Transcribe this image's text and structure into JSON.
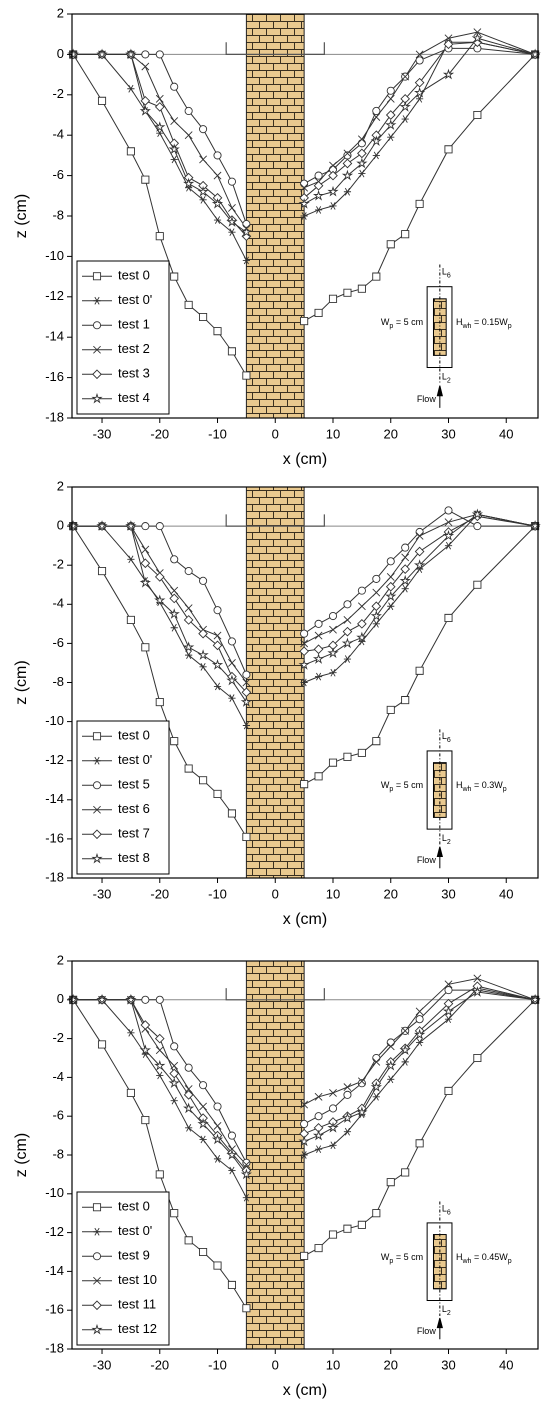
{
  "chart_data": [
    {
      "type": "line",
      "xlabel": "x (cm)",
      "ylabel": "z (cm)",
      "xlim": [
        -35.2,
        45.5
      ],
      "ylim": [
        -18,
        2
      ],
      "xticks": [
        -30,
        -20,
        -10,
        0,
        10,
        20,
        30,
        40
      ],
      "yticks": [
        2,
        0,
        -2,
        -4,
        -6,
        -8,
        -10,
        -12,
        -14,
        -16,
        -18
      ],
      "legend": "lower left",
      "series": [
        {
          "name": "test 0",
          "color": "#333333",
          "marker": "square",
          "x": [
            -35,
            -30,
            -25,
            -22.5,
            -20,
            -17.5,
            -15,
            -12.5,
            -10,
            -7.5,
            -5,
            5,
            7.5,
            10,
            12.5,
            15,
            17.5,
            20,
            22.5,
            25,
            30,
            35,
            45
          ],
          "values": [
            0,
            -2.3,
            -4.8,
            -6.2,
            -9,
            -11,
            -12.4,
            -13,
            -13.7,
            -14.7,
            -15.9,
            -13.2,
            -12.8,
            -12.1,
            -11.8,
            -11.6,
            -11,
            -9.4,
            -8.9,
            -7.4,
            -4.7,
            -3,
            0
          ]
        },
        {
          "name": "test 0'",
          "color": "#333333",
          "marker": "asterisk",
          "x": [
            -35,
            -30,
            -25,
            -22.5,
            -20,
            -17.5,
            -15,
            -12.5,
            -10,
            -7.5,
            -5,
            5,
            7.5,
            10,
            12.5,
            15,
            17.5,
            20,
            22.5,
            25,
            30,
            35,
            45
          ],
          "values": [
            0,
            0,
            -1.7,
            -2.8,
            -3.9,
            -5.2,
            -6.6,
            -7.2,
            -8.2,
            -8.8,
            -10.2,
            -8,
            -7.7,
            -7.5,
            -6.8,
            -5.9,
            -5,
            -4.1,
            -3.2,
            -2.2,
            0.6,
            0.6,
            0
          ]
        },
        {
          "name": "test 1",
          "color": "#333333",
          "marker": "circle",
          "x": [
            -35,
            -30,
            -25,
            -22.5,
            -20,
            -17.5,
            -15,
            -12.5,
            -10,
            -7.5,
            -5,
            5,
            7.5,
            10,
            12.5,
            15,
            17.5,
            20,
            22.5,
            25,
            30,
            35,
            45
          ],
          "values": [
            0,
            0,
            0,
            0,
            0,
            -1.6,
            -2.8,
            -3.7,
            -5,
            -6.3,
            -8.4,
            -6.4,
            -6,
            -5.7,
            -5,
            -4.4,
            -2.8,
            -1.8,
            -1.1,
            -0.3,
            0.3,
            0.3,
            0
          ]
        },
        {
          "name": "test 2",
          "color": "#333333",
          "marker": "x",
          "x": [
            -35,
            -30,
            -25,
            -22.5,
            -20,
            -17.5,
            -15,
            -12.5,
            -10,
            -7.5,
            -5,
            5,
            7.5,
            10,
            12.5,
            15,
            17.5,
            20,
            22.5,
            25,
            30,
            35,
            45
          ],
          "values": [
            0,
            0,
            0,
            -0.6,
            -2.2,
            -3.3,
            -4,
            -5.2,
            -6,
            -7.6,
            -8.6,
            -6.6,
            -6.3,
            -5.5,
            -4.9,
            -4.2,
            -3.1,
            -2.2,
            -1.1,
            0,
            0.8,
            1.1,
            0
          ]
        },
        {
          "name": "test 3",
          "color": "#333333",
          "marker": "diamond",
          "x": [
            -35,
            -30,
            -25,
            -22.5,
            -20,
            -17.5,
            -15,
            -12.5,
            -10,
            -7.5,
            -5,
            5,
            7.5,
            10,
            12.5,
            15,
            17.5,
            20,
            22.5,
            25,
            30,
            35,
            45
          ],
          "values": [
            0,
            0,
            0,
            -2.3,
            -2.6,
            -4.4,
            -6.1,
            -6.5,
            -7.1,
            -8.2,
            -9,
            -7.1,
            -6.5,
            -6,
            -5.4,
            -4.9,
            -4,
            -3,
            -2.2,
            -1.4,
            0.5,
            0.6,
            0
          ]
        },
        {
          "name": "test 4",
          "color": "#333333",
          "marker": "star",
          "x": [
            -35,
            -30,
            -25,
            -22.5,
            -20,
            -17.5,
            -15,
            -12.5,
            -10,
            -7.5,
            -5,
            5,
            7.5,
            10,
            12.5,
            15,
            17.5,
            20,
            22.5,
            25,
            30,
            35,
            45
          ],
          "values": [
            0,
            0,
            0,
            -2.8,
            -3.6,
            -4.7,
            -6.4,
            -6.8,
            -7.4,
            -8.3,
            -8.8,
            -7.4,
            -7,
            -6.8,
            -6,
            -5.4,
            -4.3,
            -3.5,
            -2.6,
            -1.9,
            -1,
            0.8,
            0
          ]
        }
      ],
      "inset": {
        "top_label": [
          "L",
          "6"
        ],
        "bottom_label": [
          "L",
          "2"
        ],
        "width_label": [
          "W",
          "p",
          " = 5 cm"
        ],
        "height_label": [
          "H",
          "wh",
          " = 0.15W",
          "p"
        ],
        "flow_label": "Flow"
      }
    },
    {
      "type": "line",
      "xlabel": "x (cm)",
      "ylabel": "z (cm)",
      "xlim": [
        -35.2,
        45.5
      ],
      "ylim": [
        -18,
        2
      ],
      "xticks": [
        -30,
        -20,
        -10,
        0,
        10,
        20,
        30,
        40
      ],
      "yticks": [
        2,
        0,
        -2,
        -4,
        -6,
        -8,
        -10,
        -12,
        -14,
        -16,
        -18
      ],
      "legend": "lower left",
      "series": [
        {
          "name": "test 0",
          "color": "#333333",
          "marker": "square",
          "x": [
            -35,
            -30,
            -25,
            -22.5,
            -20,
            -17.5,
            -15,
            -12.5,
            -10,
            -7.5,
            -5,
            5,
            7.5,
            10,
            12.5,
            15,
            17.5,
            20,
            22.5,
            25,
            30,
            35,
            45
          ],
          "values": [
            0,
            -2.3,
            -4.8,
            -6.2,
            -9,
            -11,
            -12.4,
            -13,
            -13.7,
            -14.7,
            -15.9,
            -13.2,
            -12.8,
            -12.1,
            -11.8,
            -11.6,
            -11,
            -9.4,
            -8.9,
            -7.4,
            -4.7,
            -3,
            0
          ]
        },
        {
          "name": "test 0'",
          "color": "#333333",
          "marker": "asterisk",
          "x": [
            -35,
            -30,
            -25,
            -22.5,
            -20,
            -17.5,
            -15,
            -12.5,
            -10,
            -7.5,
            -5,
            5,
            7.5,
            10,
            12.5,
            15,
            17.5,
            20,
            22.5,
            25,
            30,
            35,
            45
          ],
          "values": [
            0,
            0,
            -1.7,
            -2.8,
            -3.9,
            -5.2,
            -6.6,
            -7.2,
            -8.2,
            -8.8,
            -10.2,
            -8,
            -7.7,
            -7.5,
            -6.8,
            -5.9,
            -5,
            -4.1,
            -3.2,
            -2.2,
            -1,
            0.6,
            0
          ]
        },
        {
          "name": "test 5",
          "color": "#333333",
          "marker": "circle",
          "x": [
            -35,
            -30,
            -25,
            -22.5,
            -20,
            -17.5,
            -15,
            -12.5,
            -10,
            -7.5,
            -5,
            5,
            7.5,
            10,
            12.5,
            15,
            17.5,
            20,
            22.5,
            25,
            30,
            35,
            45
          ],
          "values": [
            0,
            0,
            0,
            0,
            0,
            -1.7,
            -2.3,
            -2.8,
            -4.3,
            -5.9,
            -7.6,
            -5.5,
            -5,
            -4.6,
            -4,
            -3.3,
            -2.7,
            -1.8,
            -1.1,
            -0.3,
            0.8,
            0,
            0
          ]
        },
        {
          "name": "test 6",
          "color": "#333333",
          "marker": "x",
          "x": [
            -35,
            -30,
            -25,
            -22.5,
            -20,
            -17.5,
            -15,
            -12.5,
            -10,
            -7.5,
            -5,
            5,
            7.5,
            10,
            12.5,
            15,
            17.5,
            20,
            22.5,
            25,
            30,
            35,
            45
          ],
          "values": [
            0,
            0,
            0,
            -1.2,
            -2.4,
            -3.3,
            -4.2,
            -5.3,
            -5.6,
            -7,
            -8,
            -6,
            -5.6,
            -5.3,
            -4.8,
            -4.1,
            -3.4,
            -2.6,
            -1.6,
            -0.5,
            0.2,
            0.6,
            0
          ]
        },
        {
          "name": "test 7",
          "color": "#333333",
          "marker": "diamond",
          "x": [
            -35,
            -30,
            -25,
            -22.5,
            -20,
            -17.5,
            -15,
            -12.5,
            -10,
            -7.5,
            -5,
            5,
            7.5,
            10,
            12.5,
            15,
            17.5,
            20,
            22.5,
            25,
            30,
            35,
            45
          ],
          "values": [
            0,
            0,
            0,
            -1.9,
            -2.6,
            -3.7,
            -4.8,
            -5.5,
            -6.1,
            -7.7,
            -8.5,
            -6.4,
            -6.3,
            -6.1,
            -5.4,
            -5,
            -4.1,
            -3.1,
            -2.2,
            -1.3,
            -0.3,
            0.5,
            0
          ]
        },
        {
          "name": "test 8",
          "color": "#333333",
          "marker": "star",
          "x": [
            -35,
            -30,
            -25,
            -22.5,
            -20,
            -17.5,
            -15,
            -12.5,
            -10,
            -7.5,
            -5,
            5,
            7.5,
            10,
            12.5,
            15,
            17.5,
            20,
            22.5,
            25,
            30,
            35,
            45
          ],
          "values": [
            0,
            0,
            0,
            -2.9,
            -3.8,
            -4.5,
            -6.2,
            -6.6,
            -7.1,
            -7.9,
            -9,
            -7.1,
            -6.8,
            -6.5,
            -6,
            -5.7,
            -4.6,
            -3.6,
            -2.8,
            -2,
            -0.5,
            0.6,
            0
          ]
        }
      ],
      "inset": {
        "top_label": [
          "L",
          "6"
        ],
        "bottom_label": [
          "L",
          "2"
        ],
        "width_label": [
          "W",
          "p",
          " = 5 cm"
        ],
        "height_label": [
          "H",
          "wh",
          " = 0.3W",
          "p"
        ],
        "flow_label": "Flow"
      }
    },
    {
      "type": "line",
      "xlabel": "x (cm)",
      "ylabel": "z (cm)",
      "xlim": [
        -35.2,
        45.5
      ],
      "ylim": [
        -18,
        2
      ],
      "xticks": [
        -30,
        -20,
        -10,
        0,
        10,
        20,
        30,
        40
      ],
      "yticks": [
        2,
        0,
        -2,
        -4,
        -6,
        -8,
        -10,
        -12,
        -14,
        -16,
        -18
      ],
      "legend": "lower left",
      "series": [
        {
          "name": "test 0",
          "color": "#333333",
          "marker": "square",
          "x": [
            -35,
            -30,
            -25,
            -22.5,
            -20,
            -17.5,
            -15,
            -12.5,
            -10,
            -7.5,
            -5,
            5,
            7.5,
            10,
            12.5,
            15,
            17.5,
            20,
            22.5,
            25,
            30,
            35,
            45
          ],
          "values": [
            0,
            -2.3,
            -4.8,
            -6.2,
            -9,
            -11,
            -12.4,
            -13,
            -13.7,
            -14.7,
            -15.9,
            -13.2,
            -12.8,
            -12.1,
            -11.8,
            -11.6,
            -11,
            -9.4,
            -8.9,
            -7.4,
            -4.7,
            -3,
            0
          ]
        },
        {
          "name": "test 0'",
          "color": "#333333",
          "marker": "asterisk",
          "x": [
            -35,
            -30,
            -25,
            -22.5,
            -20,
            -17.5,
            -15,
            -12.5,
            -10,
            -7.5,
            -5,
            5,
            7.5,
            10,
            12.5,
            15,
            17.5,
            20,
            22.5,
            25,
            30,
            35,
            45
          ],
          "values": [
            0,
            0,
            -1.7,
            -2.8,
            -3.9,
            -5.2,
            -6.6,
            -7.2,
            -8.2,
            -8.8,
            -10.2,
            -8,
            -7.7,
            -7.5,
            -6.8,
            -5.9,
            -5,
            -4.1,
            -3.2,
            -2.2,
            -1,
            0.6,
            0
          ]
        },
        {
          "name": "test 9",
          "color": "#333333",
          "marker": "circle",
          "x": [
            -35,
            -30,
            -25,
            -22.5,
            -20,
            -17.5,
            -15,
            -12.5,
            -10,
            -7.5,
            -5,
            5,
            7.5,
            10,
            12.5,
            15,
            17.5,
            20,
            22.5,
            25,
            30,
            35,
            45
          ],
          "values": [
            0,
            0,
            0,
            0,
            0,
            -2.4,
            -3.5,
            -4.4,
            -5.5,
            -7,
            -8.4,
            -6.4,
            -6,
            -5.6,
            -4.9,
            -4.3,
            -3,
            -2.2,
            -1.6,
            -1,
            0.5,
            0.5,
            0
          ]
        },
        {
          "name": "test 10",
          "color": "#333333",
          "marker": "x",
          "x": [
            -35,
            -30,
            -25,
            -22.5,
            -20,
            -17.5,
            -15,
            -12.5,
            -10,
            -7.5,
            -5,
            5,
            7.5,
            10,
            12.5,
            15,
            17.5,
            20,
            22.5,
            25,
            30,
            35,
            45
          ],
          "values": [
            0,
            0,
            0,
            -1.5,
            -2.6,
            -3.4,
            -4.6,
            -5.5,
            -6.5,
            -7.7,
            -8.5,
            -5.4,
            -5,
            -4.8,
            -4.5,
            -4.2,
            -3.2,
            -2.4,
            -1.6,
            -0.6,
            0.8,
            1.1,
            0
          ]
        },
        {
          "name": "test 11",
          "color": "#333333",
          "marker": "diamond",
          "x": [
            -35,
            -30,
            -25,
            -22.5,
            -20,
            -17.5,
            -15,
            -12.5,
            -10,
            -7.5,
            -5,
            5,
            7.5,
            10,
            12.5,
            15,
            17.5,
            20,
            22.5,
            25,
            30,
            35,
            45
          ],
          "values": [
            0,
            0,
            0,
            -1.3,
            -2,
            -3.8,
            -4.9,
            -6.1,
            -7,
            -7.9,
            -8.8,
            -6.9,
            -6.6,
            -6.3,
            -6,
            -5.6,
            -4.3,
            -3.2,
            -2.5,
            -1.6,
            -0.2,
            0.7,
            0
          ]
        },
        {
          "name": "test 12",
          "color": "#333333",
          "marker": "star",
          "x": [
            -35,
            -30,
            -25,
            -22.5,
            -20,
            -17.5,
            -15,
            -12.5,
            -10,
            -7.5,
            -5,
            5,
            7.5,
            10,
            12.5,
            15,
            17.5,
            20,
            22.5,
            25,
            30,
            35,
            45
          ],
          "values": [
            0,
            0,
            0,
            -2.6,
            -3.4,
            -4.3,
            -5.6,
            -6.4,
            -7.2,
            -8,
            -9,
            -7.3,
            -7,
            -6.6,
            -6.1,
            -5.8,
            -4.5,
            -3.4,
            -2.6,
            -1.8,
            -0.6,
            0.4,
            0
          ]
        }
      ],
      "inset": {
        "top_label": [
          "L",
          "6"
        ],
        "bottom_label": [
          "L",
          "2"
        ],
        "width_label": [
          "W",
          "p",
          " = 5 cm"
        ],
        "height_label": [
          "H",
          "wh",
          " = 0.45W",
          "p"
        ],
        "flow_label": "Flow"
      }
    }
  ]
}
